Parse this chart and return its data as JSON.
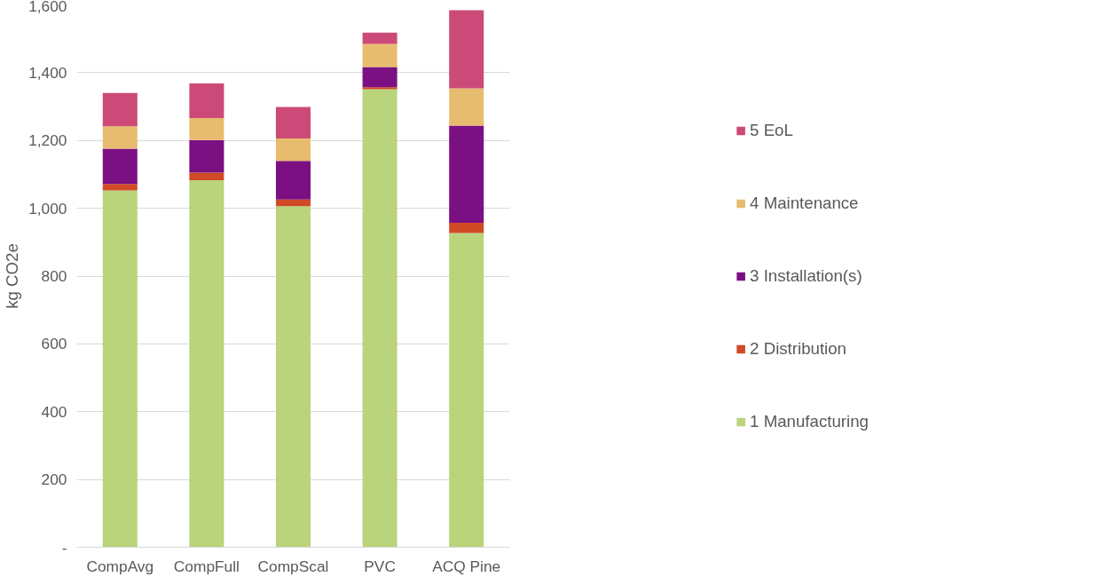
{
  "chart_data": {
    "type": "bar",
    "stacked": true,
    "ylabel": "kg CO2e",
    "categories": [
      "CompAvg",
      "CompFull",
      "CompScal",
      "PVC",
      "ACQ Pine"
    ],
    "series": [
      {
        "name": "1 Manufacturing",
        "color": "#b9d47b",
        "values": [
          1053,
          1083,
          1006,
          1351,
          927
        ]
      },
      {
        "name": "2 Distribution",
        "color": "#d04a26",
        "values": [
          19,
          22,
          20,
          6,
          30
        ]
      },
      {
        "name": "3 Installation(s)",
        "color": "#7b1083",
        "values": [
          104,
          96,
          114,
          60,
          287
        ]
      },
      {
        "name": "4 Maintenance",
        "color": "#e8bc6e",
        "values": [
          66,
          65,
          66,
          68,
          110
        ]
      },
      {
        "name": "5 EoL",
        "color": "#cc4a78",
        "values": [
          98,
          102,
          93,
          33,
          230
        ]
      }
    ],
    "ylim": [
      0,
      1600
    ],
    "yticks": [
      {
        "value": 0,
        "label": "-"
      },
      {
        "value": 200,
        "label": "200"
      },
      {
        "value": 400,
        "label": "400"
      },
      {
        "value": 600,
        "label": "600"
      },
      {
        "value": 800,
        "label": "800"
      },
      {
        "value": 1000,
        "label": "1,000"
      },
      {
        "value": 1200,
        "label": "1,200"
      },
      {
        "value": 1400,
        "label": "1,400"
      },
      {
        "value": 1600,
        "label": "1,600"
      }
    ],
    "grid": "y",
    "legend": "right"
  }
}
